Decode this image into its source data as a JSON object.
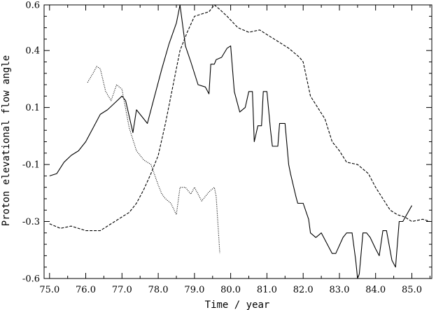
{
  "chart_data": {
    "type": "line",
    "xlabel": "Time / year",
    "ylabel": "Proton elevational flow angle",
    "xlim": [
      74.85,
      85.55
    ],
    "ylim": [
      -0.6,
      0.6
    ],
    "x_ticks": [
      "75.0",
      "76.0",
      "77.0",
      "78.0",
      "79.0",
      "80.0",
      "81.0",
      "82.0",
      "83.0",
      "84.0",
      "85.0"
    ],
    "y_ticks": [
      "-0.6",
      "-0.3",
      "-0.1",
      "0.1",
      "0.4",
      "0.6"
    ],
    "y_tick_values": [
      -0.6,
      -0.35,
      -0.1,
      0.15,
      0.4,
      0.6
    ],
    "grid": false,
    "series": [
      {
        "style": "solid",
        "x": [
          75.0,
          75.2,
          75.4,
          75.6,
          75.8,
          76.0,
          76.2,
          76.4,
          76.6,
          76.8,
          77.0,
          77.1,
          77.3,
          77.4,
          77.5,
          77.7,
          77.9,
          78.1,
          78.3,
          78.5,
          78.6,
          78.75,
          78.9,
          79.1,
          79.3,
          79.4,
          79.45,
          79.55,
          79.6,
          79.75,
          79.9,
          80.0,
          80.1,
          80.25,
          80.4,
          80.5,
          80.6,
          80.65,
          80.75,
          80.85,
          80.9,
          81.0,
          81.1,
          81.15,
          81.3,
          81.35,
          81.5,
          81.6,
          81.65,
          81.8,
          81.85,
          82.0,
          82.15,
          82.2,
          82.35,
          82.5,
          82.6,
          82.8,
          82.9,
          83.1,
          83.2,
          83.35,
          83.45,
          83.5,
          83.55,
          83.65,
          83.75,
          83.85,
          84.0,
          84.1,
          84.2,
          84.3,
          84.45,
          84.55,
          84.65,
          84.75,
          85.0
        ],
        "y": [
          -0.15,
          -0.14,
          -0.09,
          -0.06,
          -0.04,
          0.0,
          0.06,
          0.12,
          0.14,
          0.17,
          0.2,
          0.18,
          0.04,
          0.14,
          0.12,
          0.08,
          0.2,
          0.32,
          0.43,
          0.52,
          0.6,
          0.42,
          0.35,
          0.25,
          0.24,
          0.21,
          0.34,
          0.34,
          0.36,
          0.37,
          0.41,
          0.42,
          0.22,
          0.13,
          0.15,
          0.22,
          0.22,
          0.0,
          0.07,
          0.07,
          0.22,
          0.22,
          0.05,
          -0.02,
          -0.02,
          0.08,
          0.08,
          -0.1,
          -0.14,
          -0.24,
          -0.27,
          -0.27,
          -0.34,
          -0.4,
          -0.42,
          -0.4,
          -0.43,
          -0.49,
          -0.49,
          -0.42,
          -0.4,
          -0.4,
          -0.52,
          -0.6,
          -0.58,
          -0.4,
          -0.4,
          -0.42,
          -0.47,
          -0.5,
          -0.39,
          -0.39,
          -0.52,
          -0.55,
          -0.35,
          -0.35,
          -0.28
        ]
      },
      {
        "style": "dashed",
        "x": [
          75.0,
          75.3,
          75.6,
          76.0,
          76.4,
          76.8,
          77.0,
          77.2,
          77.4,
          77.6,
          77.8,
          78.0,
          78.2,
          78.4,
          78.6,
          78.8,
          79.0,
          79.2,
          79.4,
          79.55,
          79.7,
          79.9,
          80.2,
          80.5,
          80.8,
          81.0,
          81.3,
          81.6,
          81.9,
          82.0,
          82.2,
          82.4,
          82.6,
          82.8,
          83.0,
          83.2,
          83.5,
          83.8,
          84.0,
          84.2,
          84.4,
          84.6,
          84.8,
          85.0,
          85.3,
          85.5
        ],
        "y": [
          -0.36,
          -0.38,
          -0.37,
          -0.39,
          -0.39,
          -0.35,
          -0.33,
          -0.31,
          -0.27,
          -0.21,
          -0.14,
          -0.06,
          0.08,
          0.24,
          0.4,
          0.48,
          0.55,
          0.56,
          0.57,
          0.6,
          0.58,
          0.55,
          0.5,
          0.48,
          0.49,
          0.47,
          0.44,
          0.41,
          0.37,
          0.35,
          0.2,
          0.15,
          0.1,
          0.0,
          -0.04,
          -0.09,
          -0.1,
          -0.14,
          -0.2,
          -0.25,
          -0.3,
          -0.32,
          -0.33,
          -0.35,
          -0.34,
          -0.35
        ]
      },
      {
        "style": "dotted",
        "x": [
          76.05,
          76.2,
          76.3,
          76.4,
          76.55,
          76.7,
          76.85,
          77.0,
          77.2,
          77.4,
          77.6,
          77.8,
          78.0,
          78.1,
          78.2,
          78.35,
          78.5,
          78.6,
          78.7,
          78.75,
          78.9,
          79.0,
          79.2,
          79.4,
          79.55,
          79.6,
          79.7
        ],
        "y": [
          0.26,
          0.3,
          0.33,
          0.32,
          0.22,
          0.18,
          0.25,
          0.23,
          0.06,
          -0.04,
          -0.08,
          -0.1,
          -0.19,
          -0.23,
          -0.25,
          -0.27,
          -0.32,
          -0.2,
          -0.2,
          -0.2,
          -0.23,
          -0.2,
          -0.26,
          -0.22,
          -0.2,
          -0.24,
          -0.49
        ]
      }
    ]
  }
}
